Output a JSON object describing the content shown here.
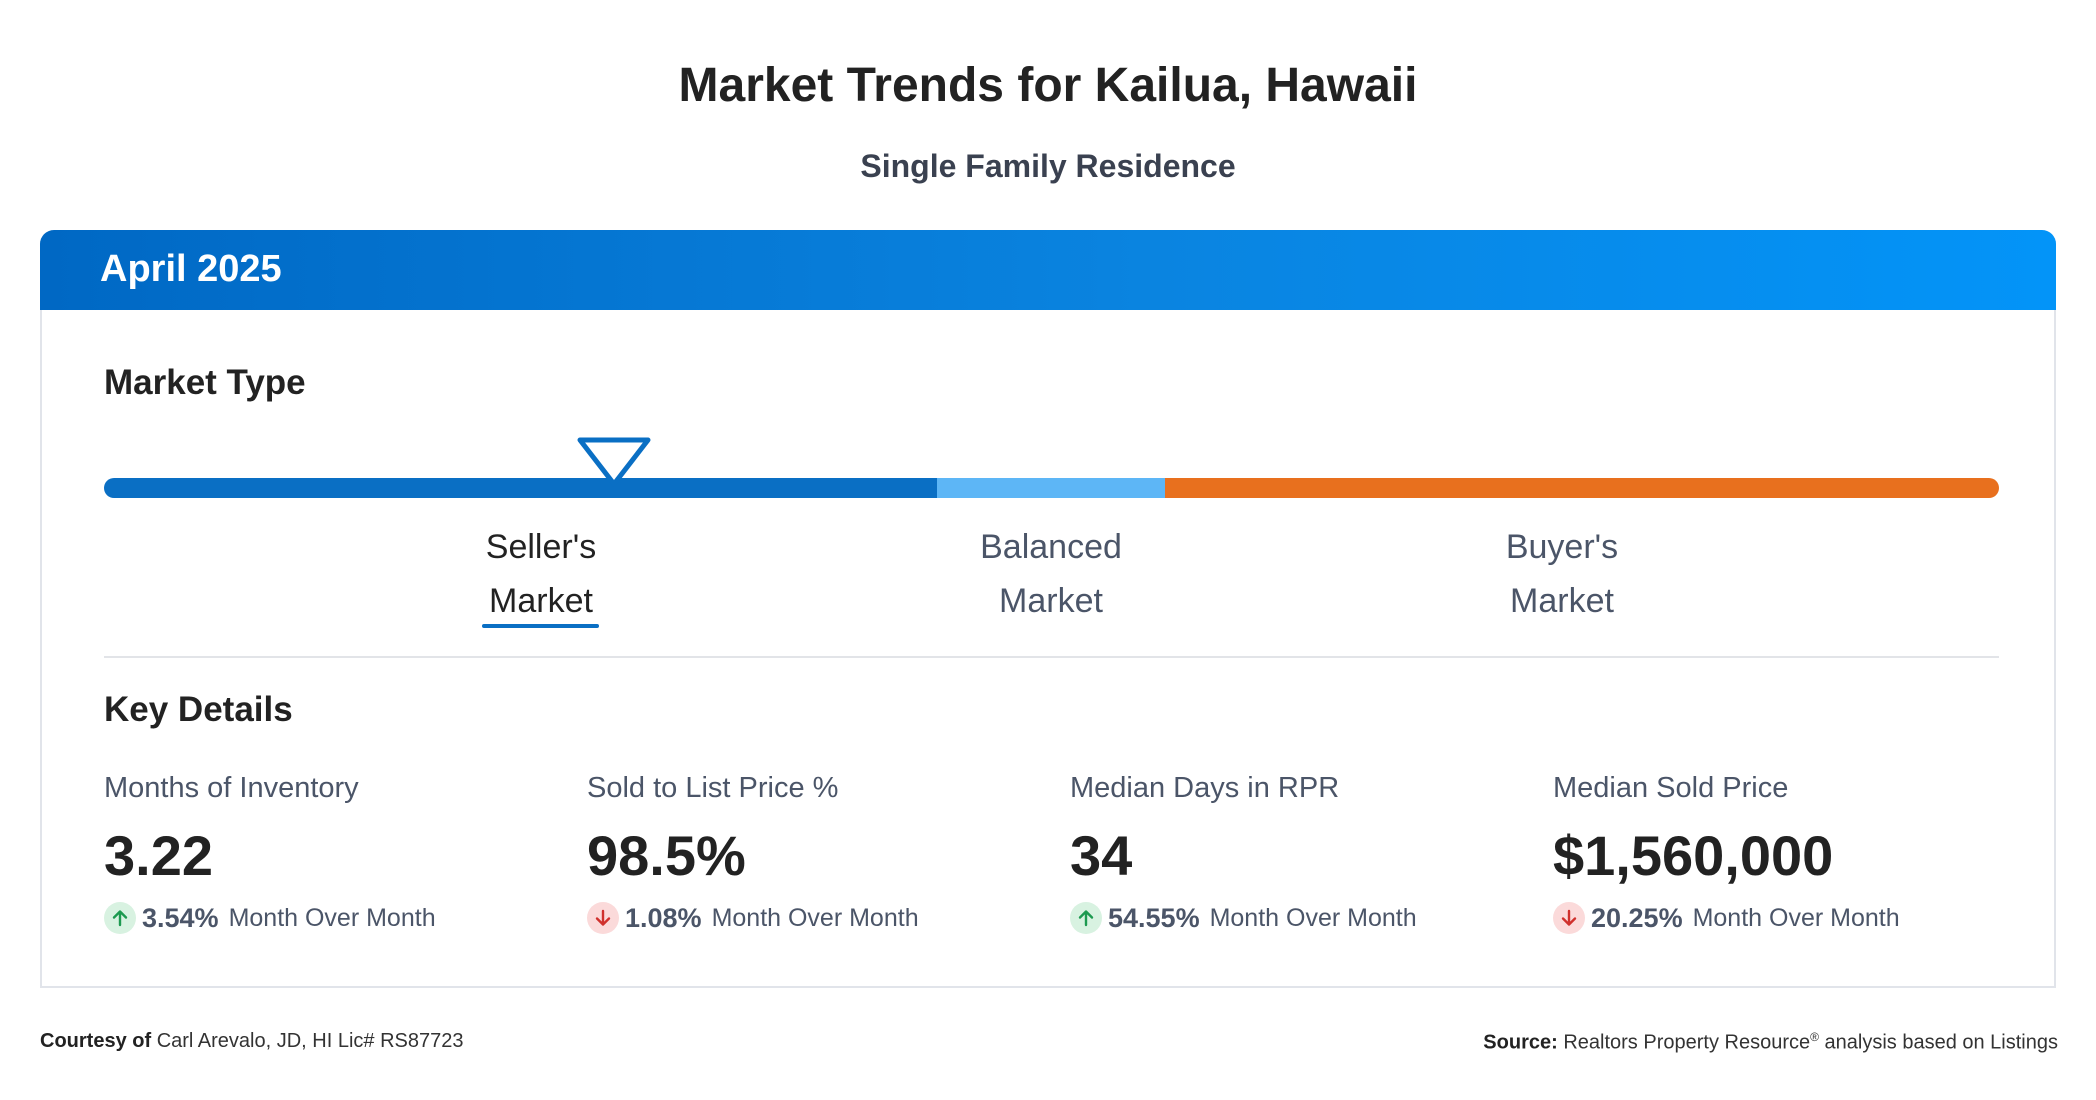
{
  "header": {
    "title": "Market Trends for Kailua, Hawaii",
    "subtitle": "Single Family Residence"
  },
  "card": {
    "period": "April 2025",
    "market_type": {
      "title": "Market Type",
      "current": "Seller's Market",
      "segments": [
        {
          "label_line1": "Seller's",
          "label_line2": "Market",
          "color": "#0a6fc4",
          "active": true
        },
        {
          "label_line1": "Balanced",
          "label_line2": "Market",
          "color": "#5db6f6",
          "active": false
        },
        {
          "label_line1": "Buyer's",
          "label_line2": "Market",
          "color": "#e8701e",
          "active": false
        }
      ]
    },
    "key_details": {
      "title": "Key Details",
      "metrics": [
        {
          "label": "Months of Inventory",
          "value": "3.22",
          "change_direction": "up",
          "change_pct": "3.54%",
          "change_text": "Month Over Month"
        },
        {
          "label": "Sold to List Price %",
          "value": "98.5%",
          "change_direction": "down",
          "change_pct": "1.08%",
          "change_text": "Month Over Month"
        },
        {
          "label": "Median Days in RPR",
          "value": "34",
          "change_direction": "up",
          "change_pct": "54.55%",
          "change_text": "Month Over Month"
        },
        {
          "label": "Median Sold Price",
          "value": "$1,560,000",
          "change_direction": "down",
          "change_pct": "20.25%",
          "change_text": "Month Over Month"
        }
      ]
    }
  },
  "footer": {
    "courtesy_label": "Courtesy of",
    "courtesy_text": "Carl Arevalo, JD, HI Lic# RS87723",
    "source_label": "Source:",
    "source_text_1": "Realtors Property Resource",
    "source_reg": "®",
    "source_text_2": " analysis based on Listings"
  },
  "colors": {
    "brand_blue": "#0a6fc4",
    "header_gradient_start": "#0068c4",
    "header_gradient_end": "#0394f8",
    "balanced_blue": "#5db6f6",
    "buyer_orange": "#e8701e",
    "up_green": "#1d9a50",
    "down_red": "#d0312d"
  },
  "icons": {
    "marker": "triangle-down-marker-icon",
    "up": "arrow-up-icon",
    "down": "arrow-down-icon"
  }
}
